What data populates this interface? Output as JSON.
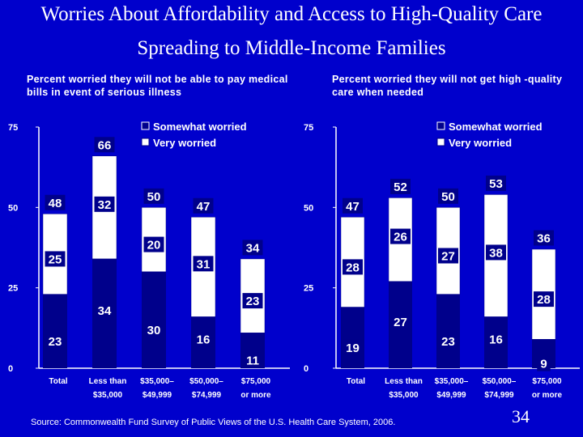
{
  "title_line1": "Worries About Affordability and Access to High-Quality Care",
  "title_line2": "Spreading to Middle-Income Families",
  "source": "Source: Commonwealth Fund Survey of Public Views of the U.S. Health Care System, 2006.",
  "page_number": "34",
  "colors": {
    "background": "#0000cc",
    "somewhat": "#00008b",
    "very": "#ffffff",
    "text": "#ffffff",
    "axis": "#ffffff"
  },
  "chart_data": [
    {
      "type": "bar",
      "stacked": true,
      "title": "Percent worried they will not be able to pay medical bills in event of serious illness",
      "categories": [
        [
          "Total"
        ],
        [
          "Less than",
          "$35,000"
        ],
        [
          "$35,000–",
          "$49,999"
        ],
        [
          "$50,000–",
          "$74,999"
        ],
        [
          "$75,000",
          "or more"
        ]
      ],
      "series": [
        {
          "name": "Somewhat worried",
          "values": [
            23,
            34,
            30,
            16,
            11
          ]
        },
        {
          "name": "Very worried",
          "values": [
            25,
            32,
            20,
            31,
            23
          ]
        }
      ],
      "totals": [
        48,
        66,
        50,
        47,
        34
      ],
      "ylim": [
        0,
        75
      ],
      "yticks": [
        "0",
        "25",
        "50",
        "75"
      ],
      "legend_position": "top-right"
    },
    {
      "type": "bar",
      "stacked": true,
      "title": "Percent worried they will not get high -quality care when needed",
      "categories": [
        [
          "Total"
        ],
        [
          "Less than",
          "$35,000"
        ],
        [
          "$35,000–",
          "$49,999"
        ],
        [
          "$50,000–",
          "$74,999"
        ],
        [
          "$75,000",
          "or more"
        ]
      ],
      "series": [
        {
          "name": "Somewhat worried",
          "values": [
            19,
            27,
            23,
            16,
            9
          ]
        },
        {
          "name": "Very worried",
          "values": [
            28,
            26,
            27,
            38,
            28
          ]
        }
      ],
      "totals": [
        47,
        52,
        50,
        53,
        36
      ],
      "ylim": [
        0,
        75
      ],
      "yticks": [
        "0",
        "25",
        "50",
        "75"
      ],
      "legend_position": "top-right"
    }
  ]
}
